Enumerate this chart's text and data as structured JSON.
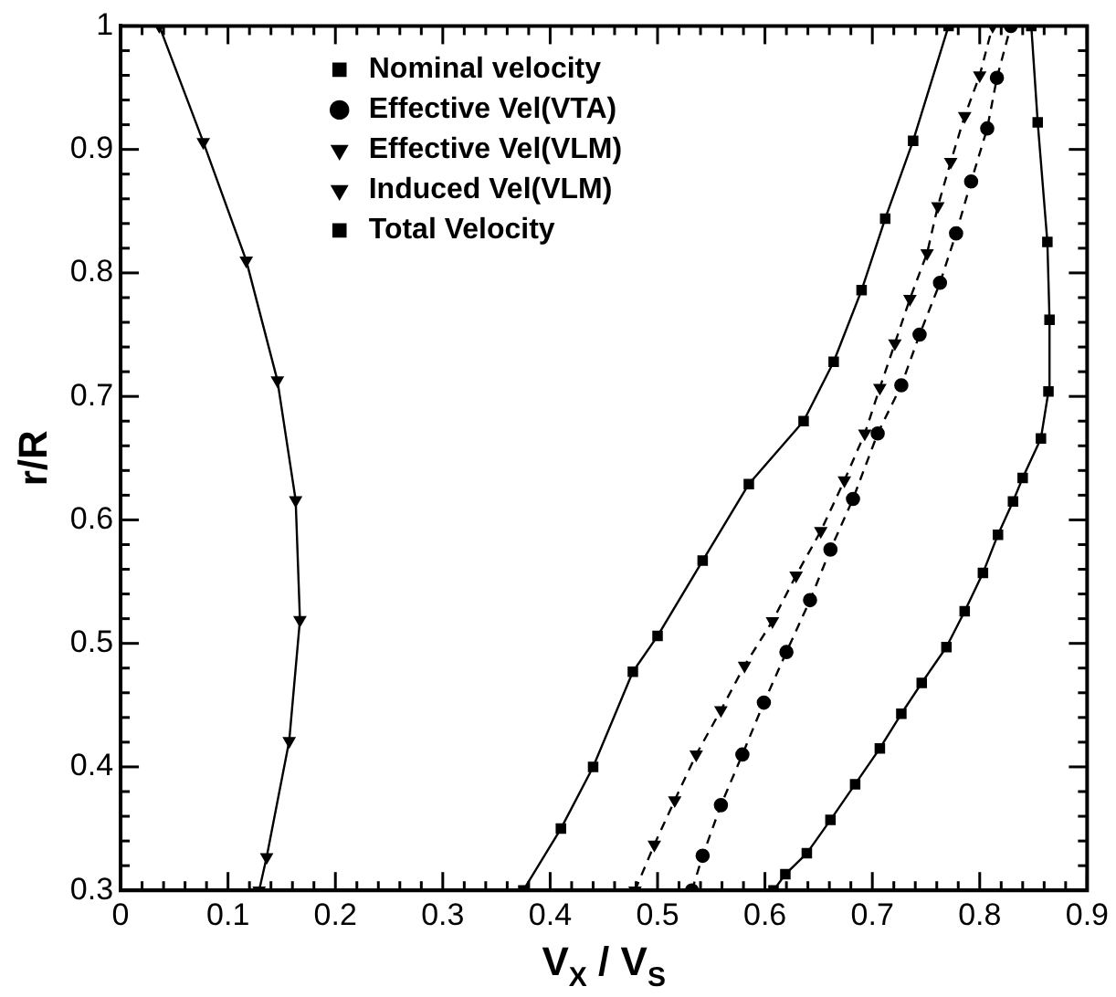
{
  "chart_data": {
    "type": "line",
    "xlabel": "V$_{X}$ / V$_{S}$",
    "ylabel": "r/R",
    "xlim": [
      0,
      0.9
    ],
    "ylim": [
      0.3,
      1
    ],
    "xticks": [
      0,
      0.1,
      0.2,
      0.3,
      0.4,
      0.5,
      0.6,
      0.7,
      0.8,
      0.9
    ],
    "yticks": [
      0.3,
      0.4,
      0.5,
      0.6,
      0.7,
      0.8,
      0.9,
      1
    ],
    "grid": false,
    "legend": "top",
    "series": [
      {
        "name": "Nominal velocity",
        "color": "#000000",
        "marker": "square",
        "line_style": "solid",
        "x": [
          0.375,
          0.41,
          0.44,
          0.477,
          0.5,
          0.542,
          0.585,
          0.636,
          0.664,
          0.69,
          0.712,
          0.738,
          0.771
        ],
        "values": [
          0.3,
          0.35,
          0.4,
          0.477,
          0.506,
          0.567,
          0.629,
          0.68,
          0.728,
          0.786,
          0.844,
          0.907,
          1
        ]
      },
      {
        "name": "Effective Vel(VTA)",
        "color": "#000000",
        "marker": "circle",
        "line_style": "dashed",
        "x": [
          0.532,
          0.542,
          0.559,
          0.579,
          0.599,
          0.62,
          0.642,
          0.661,
          0.682,
          0.705,
          0.727,
          0.744,
          0.763,
          0.778,
          0.792,
          0.807,
          0.816,
          0.829
        ],
        "values": [
          0.3,
          0.328,
          0.369,
          0.41,
          0.452,
          0.493,
          0.535,
          0.576,
          0.617,
          0.67,
          0.709,
          0.75,
          0.792,
          0.832,
          0.874,
          0.917,
          0.958,
          1
        ]
      },
      {
        "name": "Effective Vel(VLM)",
        "color": "#000000",
        "marker": "triangle_down",
        "line_style": "dashed",
        "x": [
          0.479,
          0.497,
          0.516,
          0.536,
          0.559,
          0.581,
          0.607,
          0.629,
          0.652,
          0.674,
          0.693,
          0.707,
          0.721,
          0.735,
          0.751,
          0.761,
          0.773,
          0.786,
          0.8,
          0.812
        ],
        "values": [
          0.3,
          0.337,
          0.373,
          0.41,
          0.446,
          0.482,
          0.518,
          0.555,
          0.591,
          0.632,
          0.67,
          0.707,
          0.743,
          0.779,
          0.816,
          0.854,
          0.89,
          0.927,
          0.96,
          1
        ]
      },
      {
        "name": "Induced Vel(VLM)",
        "color": "#000000",
        "marker": "triangle_down",
        "line_style": "solid",
        "x": [
          0.129,
          0.136,
          0.157,
          0.167,
          0.163,
          0.146,
          0.117,
          0.077,
          0.036
        ],
        "values": [
          0.3,
          0.327,
          0.421,
          0.519,
          0.616,
          0.713,
          0.81,
          0.906,
          1
        ]
      },
      {
        "name": "Total Velocity",
        "color": "#000000",
        "marker": "square",
        "line_style": "solid",
        "x": [
          0.608,
          0.619,
          0.639,
          0.661,
          0.684,
          0.707,
          0.727,
          0.746,
          0.769,
          0.786,
          0.803,
          0.817,
          0.831,
          0.84,
          0.857,
          0.864,
          0.865,
          0.863,
          0.854,
          0.848
        ],
        "values": [
          0.3,
          0.313,
          0.33,
          0.357,
          0.386,
          0.415,
          0.443,
          0.468,
          0.497,
          0.526,
          0.557,
          0.588,
          0.615,
          0.634,
          0.666,
          0.704,
          0.762,
          0.825,
          0.922,
          1
        ]
      }
    ]
  }
}
